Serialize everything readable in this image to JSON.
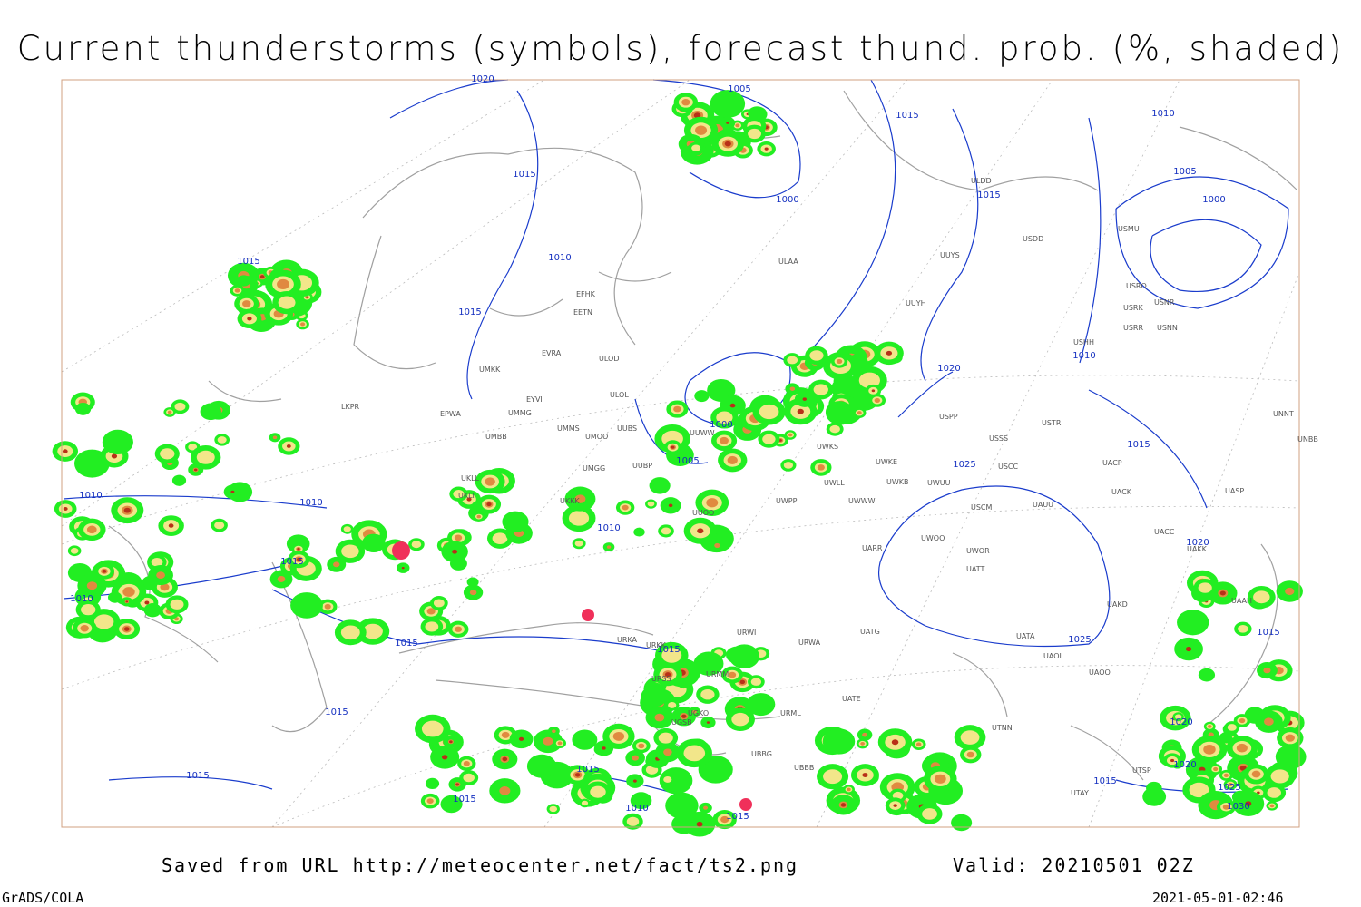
{
  "header": {
    "title": "Current thunderstorms (symbols), forecast thund. prob. (%, shaded)"
  },
  "footer": {
    "source": "Saved from URL http://meteocenter.net/fact/ts2.png",
    "valid": "Valid: 20210501 02Z",
    "software": "GrADS/COLA",
    "timestamp": "2021-05-01-02:46"
  },
  "isobar_labels": [
    1020,
    1005,
    1015,
    1015,
    1010,
    1005,
    1000,
    1000,
    1015,
    1015,
    1010,
    1015,
    1010,
    1020,
    1000,
    1015,
    1005,
    1025,
    1010,
    1010,
    1010,
    1015,
    1020,
    1010,
    1015,
    1015,
    1025,
    1015,
    1015,
    1020,
    1020,
    1015,
    1015,
    1015,
    1025,
    1015,
    1010,
    1015,
    1030
  ],
  "station_labels": [
    "ULAA",
    "UUYS",
    "UUYH",
    "ULDD",
    "USDD",
    "USMU",
    "USRO",
    "USNR",
    "USRK",
    "USRR",
    "USNN",
    "USHH",
    "UNNT",
    "UNBB",
    "EFHK",
    "EETN",
    "EVRA",
    "ULOD",
    "ULOL",
    "UMKK",
    "EYVI",
    "EPWA",
    "UMMG",
    "UMBB",
    "UMMS",
    "UMOO",
    "UUBS",
    "UMGG",
    "UUBP",
    "UKLL",
    "UKLI",
    "LKPR",
    "UUWW",
    "UWKS",
    "UWKE",
    "UWKB",
    "UWUU",
    "UWLL",
    "UWPP",
    "UWWW",
    "USPP",
    "USTR",
    "USSS",
    "USCC",
    "UACP",
    "UACK",
    "UASP",
    "USCM",
    "UAUU",
    "UACC",
    "UAKK",
    "UARR",
    "UWOO",
    "UWOR",
    "UATT",
    "UAKD",
    "UAAH",
    "UATG",
    "UATA",
    "UAOL",
    "UAOO",
    "UTNN",
    "UATE",
    "URWA",
    "URWI",
    "URKA",
    "URKK",
    "URSS",
    "URMM",
    "URML",
    "UGSB",
    "UGKO",
    "UBBG",
    "UBBB",
    "UTAY",
    "UTSP",
    "UUOO",
    "UKKK"
  ]
}
